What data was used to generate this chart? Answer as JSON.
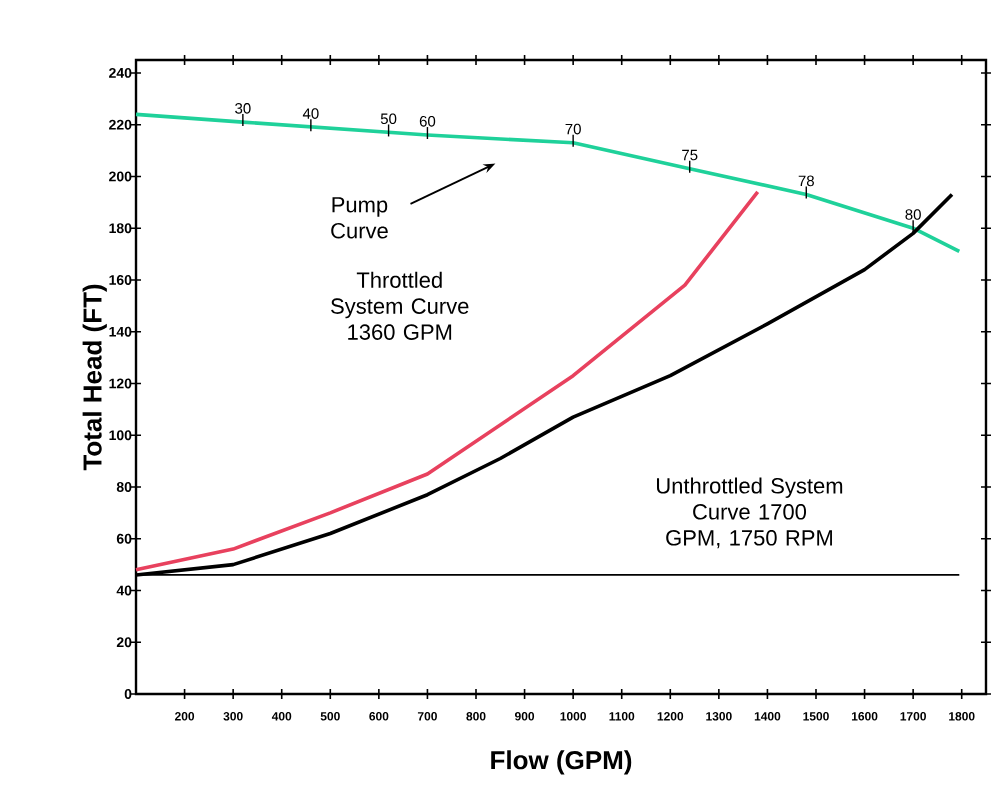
{
  "chart_data": {
    "type": "line",
    "xlabel": "Flow (GPM)",
    "ylabel": "Total Head (FT)",
    "xlim": [
      100,
      1850
    ],
    "ylim": [
      0,
      245
    ],
    "xticks": [
      200,
      300,
      400,
      500,
      600,
      700,
      800,
      900,
      1000,
      1100,
      1200,
      1300,
      1400,
      1500,
      1600,
      1700,
      1800
    ],
    "yticks": [
      0,
      20,
      40,
      60,
      80,
      100,
      120,
      140,
      160,
      180,
      200,
      220,
      240
    ],
    "grid": false,
    "marker": "none",
    "line_style": "solid",
    "series": [
      {
        "color": "#1fd19a",
        "x": [
          100,
          320,
          700,
          1000,
          1240,
          1480,
          1700,
          1795
        ],
        "values": [
          224,
          221,
          216,
          213,
          203,
          193,
          180,
          171
        ]
      },
      {
        "color": "#e8415e",
        "x": [
          100,
          300,
          500,
          700,
          850,
          1000,
          1230,
          1380
        ],
        "values": [
          48,
          56,
          70,
          85,
          104,
          123,
          158,
          194
        ]
      },
      {
        "color": "#000000",
        "x": [
          100,
          300,
          500,
          700,
          850,
          1000,
          1200,
          1400,
          1600,
          1700,
          1780
        ],
        "values": [
          46,
          50,
          62,
          77,
          91,
          107,
          123,
          143,
          164,
          178,
          193
        ]
      }
    ],
    "ref_lines": [
      {
        "axis": "y",
        "value": 46,
        "color": "#000000"
      }
    ],
    "annotations": [
      {
        "text": "30",
        "x": 320,
        "y": 221
      },
      {
        "text": "40",
        "x": 460,
        "y": 219
      },
      {
        "text": "50",
        "x": 620,
        "y": 217
      },
      {
        "text": "60",
        "x": 700,
        "y": 216
      },
      {
        "text": "70",
        "x": 1000,
        "y": 213
      },
      {
        "text": "75",
        "x": 1240,
        "y": 203
      },
      {
        "text": "78",
        "x": 1480,
        "y": 193
      },
      {
        "text": "80",
        "x": 1700,
        "y": 180
      },
      "Pump Curve",
      "Throttled System Curve 1360 GPM",
      "Unthrottled System Curve 1700 GPM, 1750 RPM"
    ]
  }
}
